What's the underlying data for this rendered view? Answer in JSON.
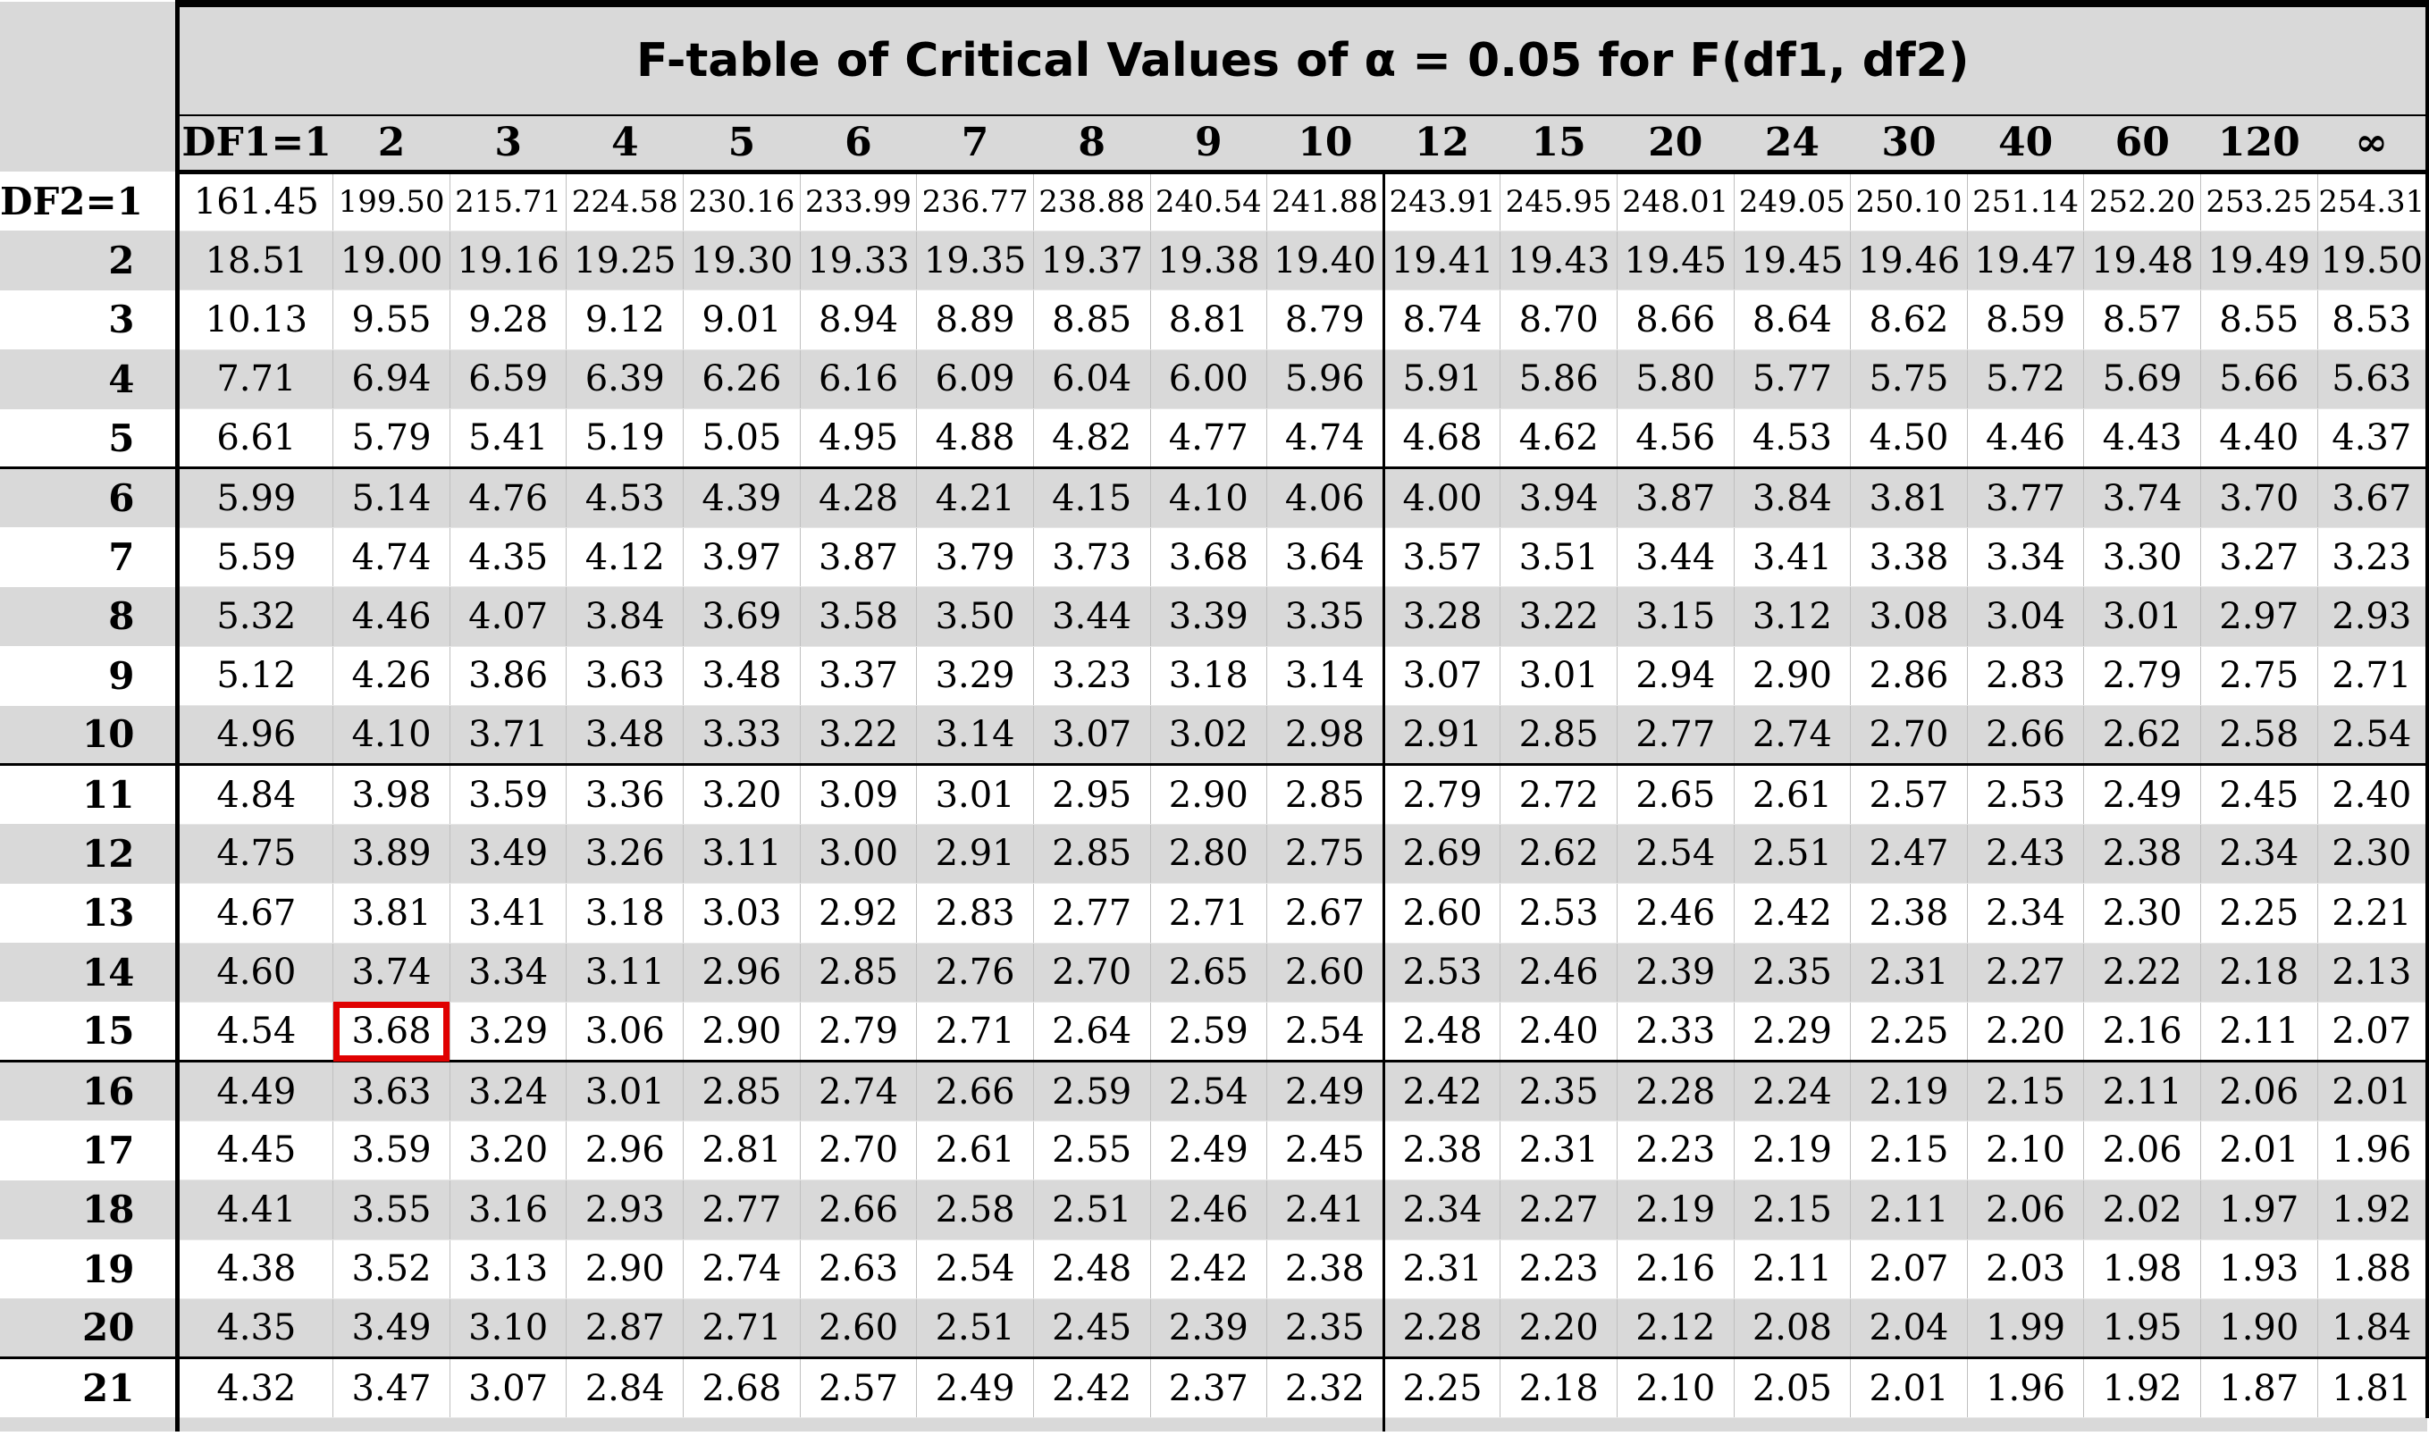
{
  "title": "F-table of Critical Values of α = 0.05 for F(df1, df2)",
  "column_headers": [
    "DF1=1",
    "2",
    "3",
    "4",
    "5",
    "6",
    "7",
    "8",
    "9",
    "10",
    "12",
    "15",
    "20",
    "24",
    "30",
    "40",
    "60",
    "120",
    "∞"
  ],
  "highlight": {
    "row_label": "15",
    "column_label": "2",
    "value": "3.68",
    "color": "#e00000"
  },
  "shade_color": "#d9d9d9",
  "rows": [
    {
      "label": "DF2=1",
      "values": [
        "161.45",
        "199.50",
        "215.71",
        "224.58",
        "230.16",
        "233.99",
        "236.77",
        "238.88",
        "240.54",
        "241.88",
        "243.91",
        "245.95",
        "248.01",
        "249.05",
        "250.10",
        "251.14",
        "252.20",
        "253.25",
        "254.31"
      ]
    },
    {
      "label": "2",
      "values": [
        "18.51",
        "19.00",
        "19.16",
        "19.25",
        "19.30",
        "19.33",
        "19.35",
        "19.37",
        "19.38",
        "19.40",
        "19.41",
        "19.43",
        "19.45",
        "19.45",
        "19.46",
        "19.47",
        "19.48",
        "19.49",
        "19.50"
      ]
    },
    {
      "label": "3",
      "values": [
        "10.13",
        "9.55",
        "9.28",
        "9.12",
        "9.01",
        "8.94",
        "8.89",
        "8.85",
        "8.81",
        "8.79",
        "8.74",
        "8.70",
        "8.66",
        "8.64",
        "8.62",
        "8.59",
        "8.57",
        "8.55",
        "8.53"
      ]
    },
    {
      "label": "4",
      "values": [
        "7.71",
        "6.94",
        "6.59",
        "6.39",
        "6.26",
        "6.16",
        "6.09",
        "6.04",
        "6.00",
        "5.96",
        "5.91",
        "5.86",
        "5.80",
        "5.77",
        "5.75",
        "5.72",
        "5.69",
        "5.66",
        "5.63"
      ]
    },
    {
      "label": "5",
      "values": [
        "6.61",
        "5.79",
        "5.41",
        "5.19",
        "5.05",
        "4.95",
        "4.88",
        "4.82",
        "4.77",
        "4.74",
        "4.68",
        "4.62",
        "4.56",
        "4.53",
        "4.50",
        "4.46",
        "4.43",
        "4.40",
        "4.37"
      ]
    },
    {
      "label": "6",
      "values": [
        "5.99",
        "5.14",
        "4.76",
        "4.53",
        "4.39",
        "4.28",
        "4.21",
        "4.15",
        "4.10",
        "4.06",
        "4.00",
        "3.94",
        "3.87",
        "3.84",
        "3.81",
        "3.77",
        "3.74",
        "3.70",
        "3.67"
      ]
    },
    {
      "label": "7",
      "values": [
        "5.59",
        "4.74",
        "4.35",
        "4.12",
        "3.97",
        "3.87",
        "3.79",
        "3.73",
        "3.68",
        "3.64",
        "3.57",
        "3.51",
        "3.44",
        "3.41",
        "3.38",
        "3.34",
        "3.30",
        "3.27",
        "3.23"
      ]
    },
    {
      "label": "8",
      "values": [
        "5.32",
        "4.46",
        "4.07",
        "3.84",
        "3.69",
        "3.58",
        "3.50",
        "3.44",
        "3.39",
        "3.35",
        "3.28",
        "3.22",
        "3.15",
        "3.12",
        "3.08",
        "3.04",
        "3.01",
        "2.97",
        "2.93"
      ]
    },
    {
      "label": "9",
      "values": [
        "5.12",
        "4.26",
        "3.86",
        "3.63",
        "3.48",
        "3.37",
        "3.29",
        "3.23",
        "3.18",
        "3.14",
        "3.07",
        "3.01",
        "2.94",
        "2.90",
        "2.86",
        "2.83",
        "2.79",
        "2.75",
        "2.71"
      ]
    },
    {
      "label": "10",
      "values": [
        "4.96",
        "4.10",
        "3.71",
        "3.48",
        "3.33",
        "3.22",
        "3.14",
        "3.07",
        "3.02",
        "2.98",
        "2.91",
        "2.85",
        "2.77",
        "2.74",
        "2.70",
        "2.66",
        "2.62",
        "2.58",
        "2.54"
      ]
    },
    {
      "label": "11",
      "values": [
        "4.84",
        "3.98",
        "3.59",
        "3.36",
        "3.20",
        "3.09",
        "3.01",
        "2.95",
        "2.90",
        "2.85",
        "2.79",
        "2.72",
        "2.65",
        "2.61",
        "2.57",
        "2.53",
        "2.49",
        "2.45",
        "2.40"
      ]
    },
    {
      "label": "12",
      "values": [
        "4.75",
        "3.89",
        "3.49",
        "3.26",
        "3.11",
        "3.00",
        "2.91",
        "2.85",
        "2.80",
        "2.75",
        "2.69",
        "2.62",
        "2.54",
        "2.51",
        "2.47",
        "2.43",
        "2.38",
        "2.34",
        "2.30"
      ]
    },
    {
      "label": "13",
      "values": [
        "4.67",
        "3.81",
        "3.41",
        "3.18",
        "3.03",
        "2.92",
        "2.83",
        "2.77",
        "2.71",
        "2.67",
        "2.60",
        "2.53",
        "2.46",
        "2.42",
        "2.38",
        "2.34",
        "2.30",
        "2.25",
        "2.21"
      ]
    },
    {
      "label": "14",
      "values": [
        "4.60",
        "3.74",
        "3.34",
        "3.11",
        "2.96",
        "2.85",
        "2.76",
        "2.70",
        "2.65",
        "2.60",
        "2.53",
        "2.46",
        "2.39",
        "2.35",
        "2.31",
        "2.27",
        "2.22",
        "2.18",
        "2.13"
      ]
    },
    {
      "label": "15",
      "values": [
        "4.54",
        "3.68",
        "3.29",
        "3.06",
        "2.90",
        "2.79",
        "2.71",
        "2.64",
        "2.59",
        "2.54",
        "2.48",
        "2.40",
        "2.33",
        "2.29",
        "2.25",
        "2.20",
        "2.16",
        "2.11",
        "2.07"
      ]
    },
    {
      "label": "16",
      "values": [
        "4.49",
        "3.63",
        "3.24",
        "3.01",
        "2.85",
        "2.74",
        "2.66",
        "2.59",
        "2.54",
        "2.49",
        "2.42",
        "2.35",
        "2.28",
        "2.24",
        "2.19",
        "2.15",
        "2.11",
        "2.06",
        "2.01"
      ]
    },
    {
      "label": "17",
      "values": [
        "4.45",
        "3.59",
        "3.20",
        "2.96",
        "2.81",
        "2.70",
        "2.61",
        "2.55",
        "2.49",
        "2.45",
        "2.38",
        "2.31",
        "2.23",
        "2.19",
        "2.15",
        "2.10",
        "2.06",
        "2.01",
        "1.96"
      ]
    },
    {
      "label": "18",
      "values": [
        "4.41",
        "3.55",
        "3.16",
        "2.93",
        "2.77",
        "2.66",
        "2.58",
        "2.51",
        "2.46",
        "2.41",
        "2.34",
        "2.27",
        "2.19",
        "2.15",
        "2.11",
        "2.06",
        "2.02",
        "1.97",
        "1.92"
      ]
    },
    {
      "label": "19",
      "values": [
        "4.38",
        "3.52",
        "3.13",
        "2.90",
        "2.74",
        "2.63",
        "2.54",
        "2.48",
        "2.42",
        "2.38",
        "2.31",
        "2.23",
        "2.16",
        "2.11",
        "2.07",
        "2.03",
        "1.98",
        "1.93",
        "1.88"
      ]
    },
    {
      "label": "20",
      "values": [
        "4.35",
        "3.49",
        "3.10",
        "2.87",
        "2.71",
        "2.60",
        "2.51",
        "2.45",
        "2.39",
        "2.35",
        "2.28",
        "2.20",
        "2.12",
        "2.08",
        "2.04",
        "1.99",
        "1.95",
        "1.90",
        "1.84"
      ]
    },
    {
      "label": "21",
      "values": [
        "4.32",
        "3.47",
        "3.07",
        "2.84",
        "2.68",
        "2.57",
        "2.49",
        "2.42",
        "2.37",
        "2.32",
        "2.25",
        "2.18",
        "2.10",
        "2.05",
        "2.01",
        "1.96",
        "1.92",
        "1.87",
        "1.81"
      ]
    }
  ]
}
